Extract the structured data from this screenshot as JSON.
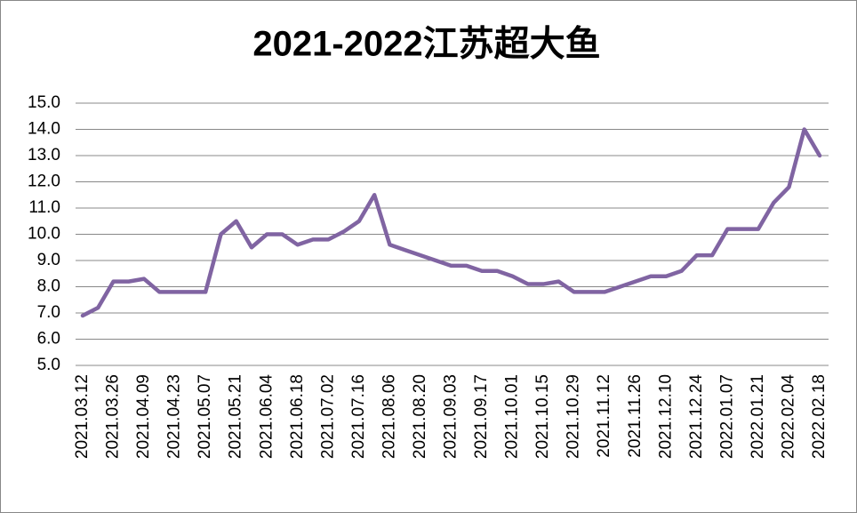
{
  "chart_data": {
    "type": "line",
    "title": "2021-2022江苏超大鱼",
    "categories": [
      "2021.03.12",
      null,
      "2021.03.26",
      null,
      "2021.04.09",
      null,
      "2021.04.23",
      null,
      "2021.05.07",
      null,
      "2021.05.21",
      null,
      "2021.06.04",
      null,
      "2021.06.18",
      null,
      "2021.07.02",
      null,
      "2021.07.16",
      null,
      "2021.08.06",
      null,
      "2021.08.20",
      null,
      "2021.09.03",
      null,
      "2021.09.17",
      null,
      "2021.10.01",
      null,
      "2021.10.15",
      null,
      "2021.10.29",
      null,
      "2021.11.12",
      null,
      "2021.11.26",
      null,
      "2021.12.10",
      null,
      "2021.12.24",
      null,
      "2022.01.07",
      null,
      "2022.01.21",
      null,
      "2022.02.04",
      null,
      "2022.02.18"
    ],
    "series": [
      {
        "color": "#8064a2",
        "values": [
          6.9,
          7.2,
          8.2,
          8.2,
          8.3,
          7.8,
          7.8,
          7.8,
          7.8,
          10.0,
          10.5,
          9.5,
          10.0,
          10.0,
          9.6,
          9.8,
          9.8,
          10.1,
          10.5,
          11.5,
          9.6,
          9.4,
          9.2,
          9.0,
          8.8,
          8.8,
          8.6,
          8.6,
          8.4,
          8.1,
          8.1,
          8.2,
          7.8,
          7.8,
          7.8,
          8.0,
          8.2,
          8.4,
          8.4,
          8.6,
          9.2,
          9.2,
          10.2,
          10.2,
          10.2,
          11.2,
          11.8,
          14.0,
          13.0
        ]
      }
    ],
    "ylim": [
      5,
      15
    ],
    "yticks": [
      {
        "value": 5,
        "label": "5.0"
      },
      {
        "value": 6,
        "label": "6.0"
      },
      {
        "value": 7,
        "label": "7.0"
      },
      {
        "value": 8,
        "label": "8.0"
      },
      {
        "value": 9,
        "label": "9.0"
      },
      {
        "value": 10,
        "label": "10.0"
      },
      {
        "value": 11,
        "label": "11.0"
      },
      {
        "value": 12,
        "label": "12.0"
      },
      {
        "value": 13,
        "label": "13.0"
      },
      {
        "value": 14,
        "label": "14.0"
      },
      {
        "value": 15,
        "label": "15.0"
      }
    ],
    "grid": true
  }
}
